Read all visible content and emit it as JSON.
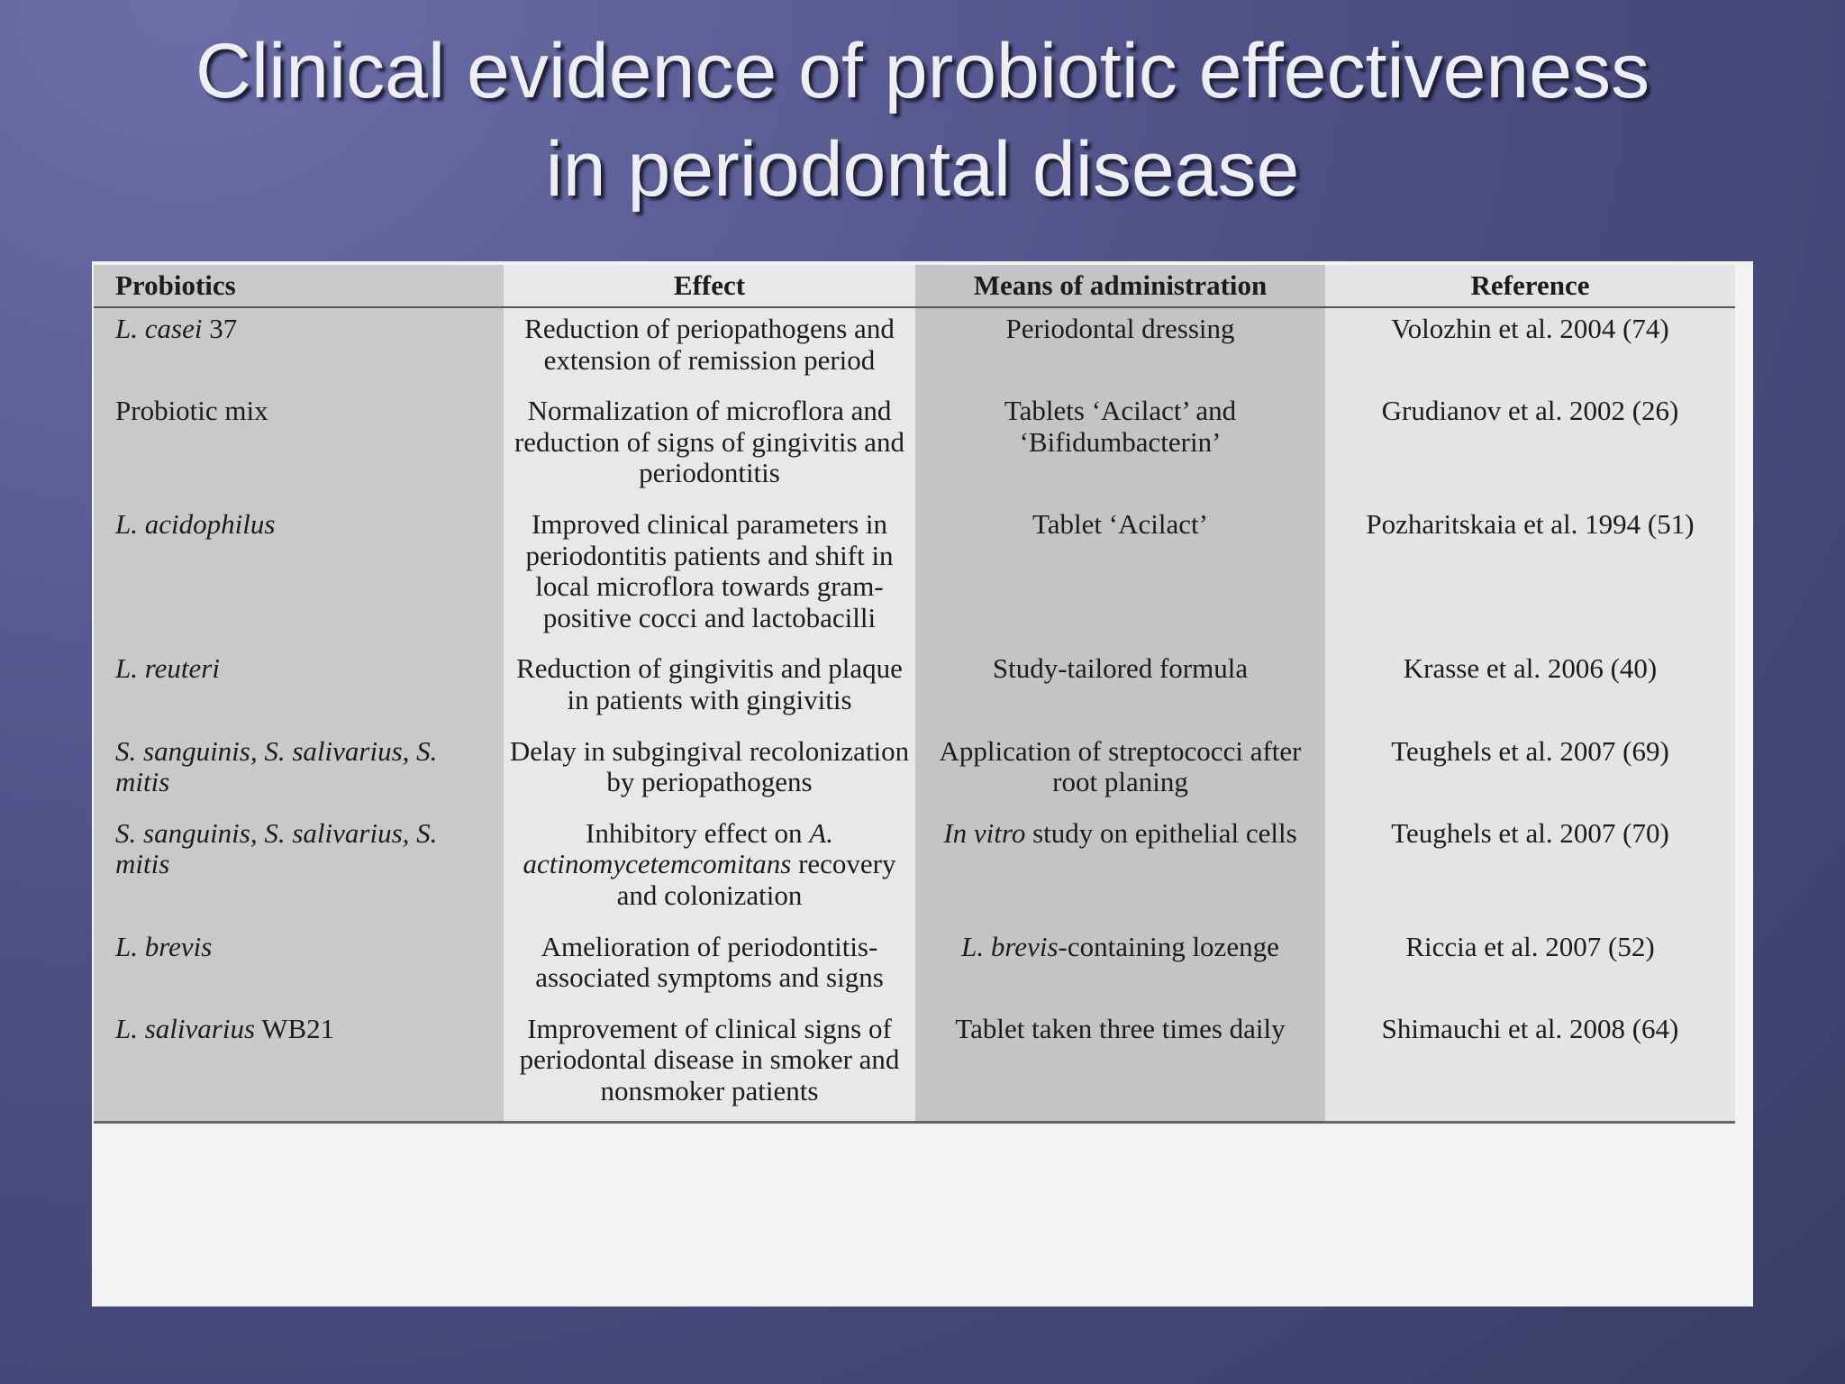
{
  "title": [
    "Clinical evidence of probiotic effectiveness",
    "in periodontal disease"
  ],
  "table": {
    "headers": [
      "Probiotics",
      "Effect",
      "Means of administration",
      "Reference"
    ],
    "rows": [
      [
        [
          {
            "text": "L. casei",
            "italic": true
          },
          {
            "text": " 37"
          }
        ],
        [
          {
            "text": "Reduction of periopathogens and extension of remission period"
          }
        ],
        [
          {
            "text": "Periodontal dressing"
          }
        ],
        [
          {
            "text": "Volozhin et al. 2004 (74)"
          }
        ]
      ],
      [
        [
          {
            "text": "Probiotic mix"
          }
        ],
        [
          {
            "text": "Normalization of microflora and reduction of signs of gingivitis and periodontitis"
          }
        ],
        [
          {
            "text": "Tablets ‘Acilact’ and ‘Bifidumbacterin’"
          }
        ],
        [
          {
            "text": "Grudianov et al. 2002 (26)"
          }
        ]
      ],
      [
        [
          {
            "text": "L. acidophilus",
            "italic": true
          }
        ],
        [
          {
            "text": "Improved clinical parameters in periodontitis patients and shift in local microflora towards gram-positive cocci and lactobacilli"
          }
        ],
        [
          {
            "text": "Tablet ‘Acilact’"
          }
        ],
        [
          {
            "text": "Pozharitskaia et al. 1994 (51)"
          }
        ]
      ],
      [
        [
          {
            "text": "L. reuteri",
            "italic": true
          }
        ],
        [
          {
            "text": "Reduction of gingivitis and plaque in patients with gingivitis"
          }
        ],
        [
          {
            "text": "Study-tailored formula"
          }
        ],
        [
          {
            "text": "Krasse et al. 2006 (40)"
          }
        ]
      ],
      [
        [
          {
            "text": "S. sanguinis, S. salivarius, S. mitis",
            "italic": true
          }
        ],
        [
          {
            "text": "Delay in subgingival recolonization by periopathogens"
          }
        ],
        [
          {
            "text": "Application of streptococci after root planing"
          }
        ],
        [
          {
            "text": "Teughels et al. 2007 (69)"
          }
        ]
      ],
      [
        [
          {
            "text": "S. sanguinis, S. salivarius, S. mitis",
            "italic": true
          }
        ],
        [
          {
            "text": "Inhibitory effect on "
          },
          {
            "text": "A. actinomycetemcomitans",
            "italic": true
          },
          {
            "text": " recovery and colonization"
          }
        ],
        [
          {
            "text": "In vitro",
            "italic": true
          },
          {
            "text": " study on epithelial cells"
          }
        ],
        [
          {
            "text": "Teughels et al. 2007 (70)"
          }
        ]
      ],
      [
        [
          {
            "text": "L. brevis",
            "italic": true
          }
        ],
        [
          {
            "text": "Amelioration of periodontitis-associated symptoms and signs"
          }
        ],
        [
          {
            "text": "L. brevis",
            "italic": true
          },
          {
            "text": "-containing lozenge"
          }
        ],
        [
          {
            "text": "Riccia et al. 2007 (52)"
          }
        ]
      ],
      [
        [
          {
            "text": "L. salivarius",
            "italic": true
          },
          {
            "text": " WB21"
          }
        ],
        [
          {
            "text": "Improvement of clinical signs of periodontal disease in smoker and nonsmoker patients"
          }
        ],
        [
          {
            "text": "Tablet taken three times daily"
          }
        ],
        [
          {
            "text": "Shimauchi et al. 2008 (64)"
          }
        ]
      ]
    ]
  }
}
